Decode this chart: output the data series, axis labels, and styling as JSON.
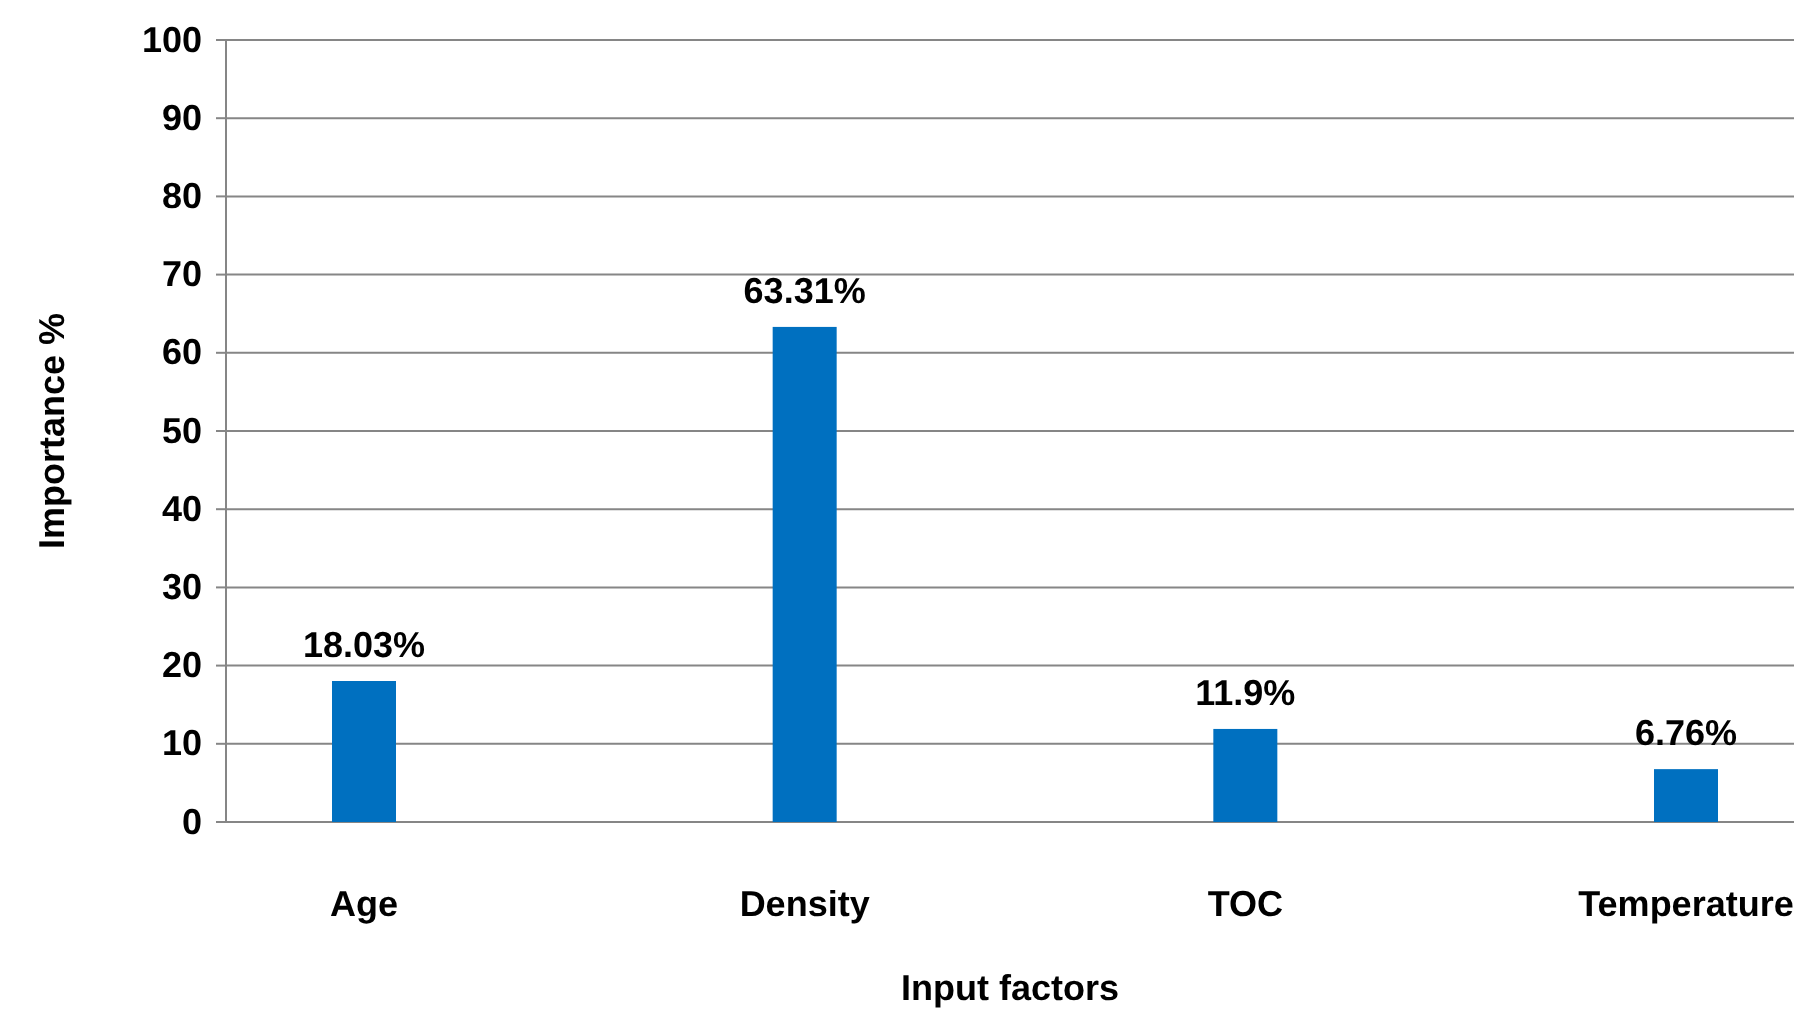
{
  "chart_data": {
    "type": "bar",
    "xlabel": "Input factors",
    "ylabel": "Importance %",
    "categories": [
      "Age",
      "Density",
      "TOC",
      "Temperature"
    ],
    "values": [
      18.03,
      63.31,
      11.9,
      6.76
    ],
    "color": "#0070c0",
    "value_labels": [
      "18.03%",
      "63.31%",
      "11.9%",
      "6.76%"
    ],
    "ylim": [
      0,
      100
    ],
    "yticks": [
      0,
      10,
      20,
      30,
      40,
      50,
      60,
      70,
      80,
      90,
      100
    ],
    "grid": "y"
  }
}
